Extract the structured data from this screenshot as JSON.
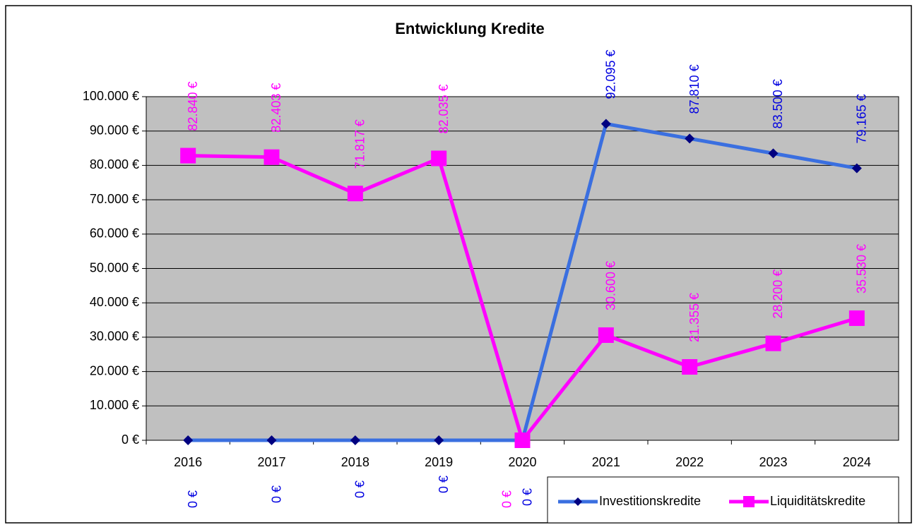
{
  "chart_data": {
    "type": "line",
    "title": "Entwicklung Kredite",
    "categories": [
      "2016",
      "2017",
      "2018",
      "2019",
      "2020",
      "2021",
      "2022",
      "2023",
      "2024"
    ],
    "series": [
      {
        "name": "Investitionskredite",
        "color": "#3a6fe0",
        "marker_color": "#000080",
        "marker": "diamond",
        "values": [
          0,
          0,
          0,
          0,
          0,
          92095,
          87810,
          83500,
          79165
        ],
        "value_labels": [
          "0 €",
          "0 €",
          "0 €",
          "0 €",
          "0 €",
          "92.095 €",
          "87.810 €",
          "83.500 €",
          "79.165 €"
        ]
      },
      {
        "name": "Liquiditätskredite",
        "color": "#ff00ff",
        "marker_color": "#ff00ff",
        "marker": "square",
        "values": [
          82840,
          82403,
          71817,
          82035,
          0,
          30600,
          21355,
          28200,
          35530
        ],
        "value_labels": [
          "82.840 €",
          "82.403 €",
          "71.817 €",
          "82.035 €",
          "0 €",
          "30.600 €",
          "21.355 €",
          "28.200 €",
          "35.530 €"
        ]
      }
    ],
    "ylim": [
      0,
      100000
    ],
    "yticks": [
      {
        "value": 0,
        "label": "0 €"
      },
      {
        "value": 10000,
        "label": "10.000 €"
      },
      {
        "value": 20000,
        "label": "20.000 €"
      },
      {
        "value": 30000,
        "label": "30.000 €"
      },
      {
        "value": 40000,
        "label": "40.000 €"
      },
      {
        "value": 50000,
        "label": "50.000 €"
      },
      {
        "value": 60000,
        "label": "60.000 €"
      },
      {
        "value": 70000,
        "label": "70.000 €"
      },
      {
        "value": 80000,
        "label": "80.000 €"
      },
      {
        "value": 90000,
        "label": "90.000 €"
      },
      {
        "value": 100000,
        "label": "100.000 €"
      }
    ],
    "grid": true,
    "legend": "bottom-right",
    "plot_background": "#c0c0c0"
  }
}
